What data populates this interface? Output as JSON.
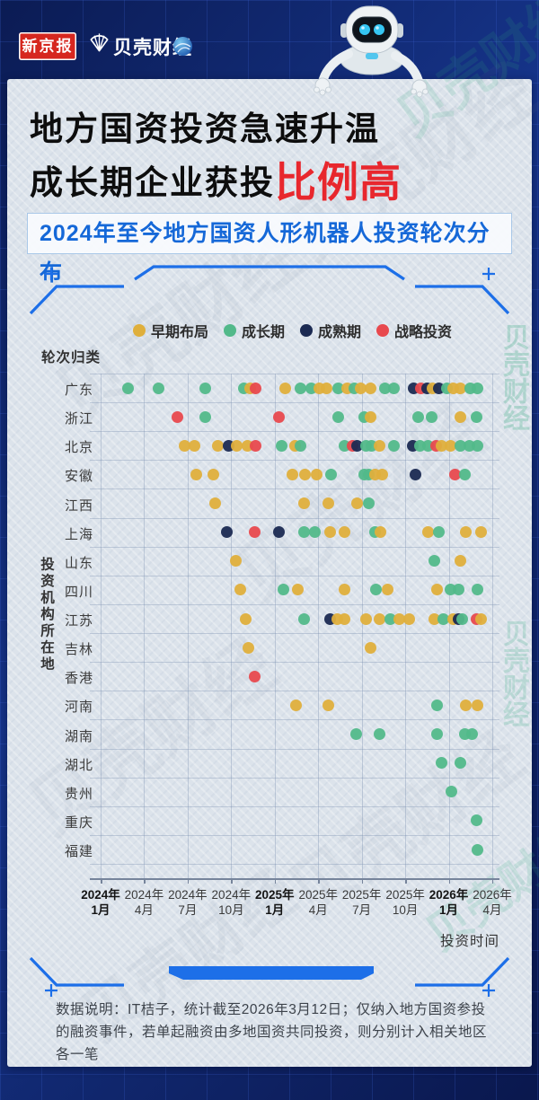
{
  "header": {
    "badge": "新京报",
    "brand": "贝壳财经"
  },
  "title": {
    "line1": "地方国资投资急速升温",
    "line2_black": "成长期企业获投",
    "line2_red": "比例高"
  },
  "subtitle": "2024年至今地方国资人形机器人投资轮次分布",
  "watermark": "贝壳财经",
  "footer": {
    "note": "数据说明：IT桔子，统计截至2026年3月12日；仅纳入地方国资参投的融资事件，若单起融资由多地国资共同投资，则分别计入相关地区各一笔"
  },
  "chart_data": {
    "type": "scatter",
    "round_label": "轮次归类",
    "y_axis_title": "投资机构所在地",
    "x_axis_title": "投资时间",
    "x_unit_note": "m = months after 2024-01, 3 months per tick",
    "legend": [
      {
        "key": "e",
        "label": "早期布局",
        "color": "#DFAF3C"
      },
      {
        "key": "g",
        "label": "成长期",
        "color": "#52B98A"
      },
      {
        "key": "m",
        "label": "成熟期",
        "color": "#1B2A52"
      },
      {
        "key": "s",
        "label": "战略投资",
        "color": "#E8494E"
      }
    ],
    "x_ticks": [
      {
        "year": "2024年",
        "month": "1月",
        "bold": true
      },
      {
        "year": "2024年",
        "month": "4月",
        "bold": false
      },
      {
        "year": "2024年",
        "month": "7月",
        "bold": false
      },
      {
        "year": "2024年",
        "month": "10月",
        "bold": false
      },
      {
        "year": "2025年",
        "month": "1月",
        "bold": true
      },
      {
        "year": "2025年",
        "month": "4月",
        "bold": false
      },
      {
        "year": "2025年",
        "month": "7月",
        "bold": false
      },
      {
        "year": "2025年",
        "month": "10月",
        "bold": false
      },
      {
        "year": "2026年",
        "month": "1月",
        "bold": true
      },
      {
        "year": "2026年",
        "month": "4月",
        "bold": false
      }
    ],
    "categories": [
      "广东",
      "浙江",
      "北京",
      "安徽",
      "江西",
      "上海",
      "山东",
      "四川",
      "江苏",
      "吉林",
      "香港",
      "河南",
      "湖南",
      "湖北",
      "贵州",
      "重庆",
      "福建"
    ],
    "points": {
      "广东": [
        [
          1.9,
          "g"
        ],
        [
          4.0,
          "g"
        ],
        [
          7.2,
          "g"
        ],
        [
          9.9,
          "g"
        ],
        [
          10.3,
          "e"
        ],
        [
          10.7,
          "s"
        ],
        [
          12.7,
          "e"
        ],
        [
          13.8,
          "g"
        ],
        [
          14.5,
          "g"
        ],
        [
          15.1,
          "e"
        ],
        [
          15.6,
          "e"
        ],
        [
          16.4,
          "g"
        ],
        [
          17.0,
          "e"
        ],
        [
          17.5,
          "g"
        ],
        [
          17.9,
          "e"
        ],
        [
          18.6,
          "e"
        ],
        [
          19.6,
          "g"
        ],
        [
          20.2,
          "g"
        ],
        [
          21.6,
          "m"
        ],
        [
          22.1,
          "s"
        ],
        [
          22.5,
          "m"
        ],
        [
          22.9,
          "e"
        ],
        [
          23.3,
          "m"
        ],
        [
          23.9,
          "g"
        ],
        [
          24.3,
          "e"
        ],
        [
          24.8,
          "e"
        ],
        [
          25.5,
          "g"
        ],
        [
          26.0,
          "g"
        ]
      ],
      "浙江": [
        [
          5.3,
          "s"
        ],
        [
          7.2,
          "g"
        ],
        [
          12.3,
          "s"
        ],
        [
          16.4,
          "g"
        ],
        [
          18.2,
          "g"
        ],
        [
          18.6,
          "e"
        ],
        [
          21.9,
          "g"
        ],
        [
          22.8,
          "g"
        ],
        [
          24.8,
          "e"
        ],
        [
          25.9,
          "g"
        ]
      ],
      "北京": [
        [
          5.8,
          "e"
        ],
        [
          6.5,
          "e"
        ],
        [
          8.1,
          "e"
        ],
        [
          8.8,
          "m"
        ],
        [
          9.4,
          "e"
        ],
        [
          10.1,
          "e"
        ],
        [
          10.7,
          "s"
        ],
        [
          12.5,
          "g"
        ],
        [
          13.4,
          "e"
        ],
        [
          13.8,
          "g"
        ],
        [
          16.8,
          "g"
        ],
        [
          17.4,
          "s"
        ],
        [
          17.7,
          "m"
        ],
        [
          18.3,
          "g"
        ],
        [
          18.7,
          "g"
        ],
        [
          19.2,
          "e"
        ],
        [
          20.2,
          "g"
        ],
        [
          21.5,
          "m"
        ],
        [
          22.0,
          "g"
        ],
        [
          22.6,
          "g"
        ],
        [
          23.1,
          "s"
        ],
        [
          23.5,
          "e"
        ],
        [
          24.1,
          "e"
        ],
        [
          24.8,
          "g"
        ],
        [
          25.4,
          "g"
        ],
        [
          26.0,
          "g"
        ]
      ],
      "安徽": [
        [
          6.6,
          "e"
        ],
        [
          7.8,
          "e"
        ],
        [
          13.2,
          "e"
        ],
        [
          14.1,
          "e"
        ],
        [
          14.9,
          "e"
        ],
        [
          15.9,
          "g"
        ],
        [
          18.2,
          "g"
        ],
        [
          18.5,
          "g"
        ],
        [
          18.9,
          "e"
        ],
        [
          19.4,
          "e"
        ],
        [
          21.7,
          "m"
        ],
        [
          24.4,
          "s"
        ],
        [
          25.1,
          "g"
        ]
      ],
      "江西": [
        [
          7.9,
          "e"
        ],
        [
          14.0,
          "e"
        ],
        [
          15.7,
          "e"
        ],
        [
          17.7,
          "e"
        ],
        [
          18.5,
          "g"
        ]
      ],
      "上海": [
        [
          8.7,
          "m"
        ],
        [
          10.6,
          "s"
        ],
        [
          12.3,
          "m"
        ],
        [
          14.0,
          "g"
        ],
        [
          14.8,
          "g"
        ],
        [
          15.8,
          "e"
        ],
        [
          16.8,
          "e"
        ],
        [
          18.9,
          "g"
        ],
        [
          19.3,
          "e"
        ],
        [
          22.6,
          "e"
        ],
        [
          23.3,
          "g"
        ],
        [
          25.2,
          "e"
        ],
        [
          26.2,
          "e"
        ]
      ],
      "山东": [
        [
          9.3,
          "e"
        ],
        [
          23.0,
          "g"
        ],
        [
          24.8,
          "e"
        ]
      ],
      "四川": [
        [
          9.6,
          "e"
        ],
        [
          12.6,
          "g"
        ],
        [
          13.6,
          "e"
        ],
        [
          16.8,
          "e"
        ],
        [
          19.0,
          "g"
        ],
        [
          19.8,
          "e"
        ],
        [
          23.2,
          "e"
        ],
        [
          24.1,
          "g"
        ],
        [
          24.7,
          "g"
        ],
        [
          26.0,
          "g"
        ]
      ],
      "江苏": [
        [
          10.0,
          "e"
        ],
        [
          14.0,
          "g"
        ],
        [
          15.8,
          "m"
        ],
        [
          16.3,
          "e"
        ],
        [
          16.8,
          "e"
        ],
        [
          18.3,
          "e"
        ],
        [
          19.2,
          "e"
        ],
        [
          20.0,
          "g"
        ],
        [
          20.6,
          "e"
        ],
        [
          21.3,
          "e"
        ],
        [
          23.0,
          "e"
        ],
        [
          23.6,
          "g"
        ],
        [
          24.3,
          "e"
        ],
        [
          24.7,
          "m"
        ],
        [
          24.9,
          "g"
        ],
        [
          25.9,
          "s"
        ],
        [
          26.2,
          "e"
        ]
      ],
      "吉林": [
        [
          10.2,
          "e"
        ],
        [
          18.6,
          "e"
        ]
      ],
      "香港": [
        [
          10.6,
          "s"
        ]
      ],
      "河南": [
        [
          13.5,
          "e"
        ],
        [
          15.7,
          "e"
        ],
        [
          23.2,
          "g"
        ],
        [
          25.2,
          "e"
        ],
        [
          26.0,
          "e"
        ]
      ],
      "湖南": [
        [
          17.6,
          "g"
        ],
        [
          19.2,
          "g"
        ],
        [
          23.2,
          "g"
        ],
        [
          25.1,
          "g"
        ],
        [
          25.6,
          "g"
        ]
      ],
      "湖北": [
        [
          23.5,
          "g"
        ],
        [
          24.8,
          "g"
        ]
      ],
      "贵州": [
        [
          24.2,
          "g"
        ]
      ],
      "重庆": [
        [
          25.9,
          "g"
        ]
      ],
      "福建": [
        [
          26.0,
          "g"
        ]
      ]
    }
  }
}
